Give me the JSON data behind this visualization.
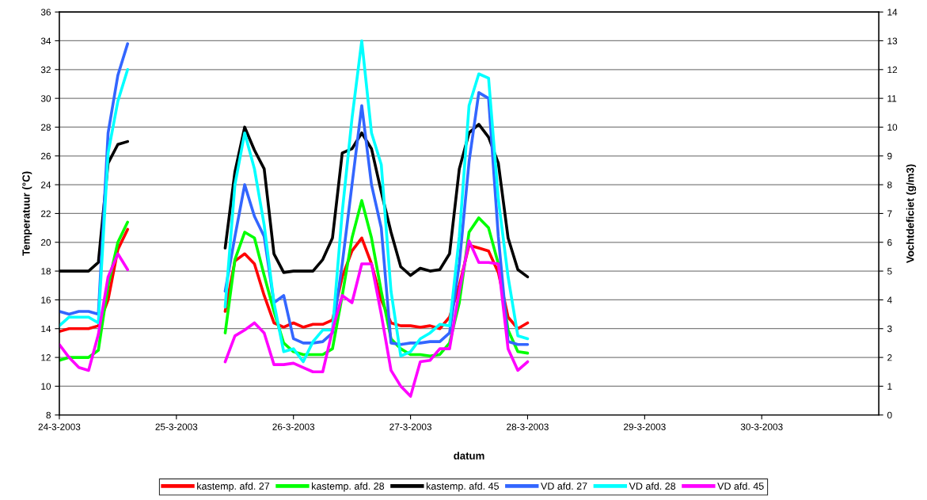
{
  "chart_data": {
    "type": "line",
    "xlabel": "datum",
    "ylabel": "Temperatuur (°C)",
    "y2label": "Vochtdeficiet (g/m3)",
    "x": [
      "2003-03-24T00:00",
      "2003-03-24T02:00",
      "2003-03-24T04:00",
      "2003-03-24T06:00",
      "2003-03-24T08:00",
      "2003-03-24T10:00",
      "2003-03-24T12:00",
      "2003-03-24T14:00",
      "2003-03-25T00:00",
      "2003-03-25T10:00",
      "2003-03-25T12:00",
      "2003-03-25T14:00",
      "2003-03-25T16:00",
      "2003-03-25T18:00",
      "2003-03-25T20:00",
      "2003-03-25T22:00",
      "2003-03-26T00:00",
      "2003-03-26T02:00",
      "2003-03-26T04:00",
      "2003-03-26T06:00",
      "2003-03-26T08:00",
      "2003-03-26T10:00",
      "2003-03-26T12:00",
      "2003-03-26T14:00",
      "2003-03-26T16:00",
      "2003-03-26T18:00",
      "2003-03-26T20:00",
      "2003-03-26T22:00",
      "2003-03-27T00:00",
      "2003-03-27T02:00",
      "2003-03-27T04:00",
      "2003-03-27T06:00",
      "2003-03-27T08:00",
      "2003-03-27T10:00",
      "2003-03-27T12:00",
      "2003-03-27T14:00",
      "2003-03-27T16:00",
      "2003-03-27T18:00",
      "2003-03-27T20:00",
      "2003-03-27T22:00",
      "2003-03-28T00:00"
    ],
    "series": [
      {
        "name": "kastemp. afd. 27",
        "color": "#ff0000",
        "values": [
          13.8,
          14,
          14,
          14,
          14.2,
          16,
          19.5,
          20.9,
          null,
          15.2,
          18.7,
          19.2,
          18.5,
          16.3,
          14.4,
          14.1,
          14.4,
          14.1,
          14.3,
          14.3,
          14.6,
          17.6,
          19.4,
          20.3,
          18.5,
          16,
          14.4,
          14.2,
          14.2,
          14.1,
          14.2,
          14.0,
          14.8,
          17.0,
          19.8,
          19.6,
          19.4,
          17.9,
          14.8,
          14.0,
          14.4
        ]
      },
      {
        "name": "kastemp. afd. 28",
        "color": "#00ff00",
        "values": [
          11.8,
          12,
          12,
          12,
          12.5,
          17,
          20,
          21.4,
          null,
          13.7,
          18.8,
          20.7,
          20.3,
          17.7,
          15.2,
          13.0,
          12.4,
          12.2,
          12.2,
          12.2,
          12.6,
          16.3,
          20.3,
          22.9,
          20.3,
          16.6,
          13.3,
          12.6,
          12.2,
          12.2,
          12.1,
          12.2,
          13.0,
          15.8,
          20.7,
          21.7,
          21.0,
          18.5,
          13.9,
          12.4,
          12.3
        ]
      },
      {
        "name": "kastemp. afd. 45",
        "color": "#000000",
        "values": [
          18,
          18,
          18,
          18,
          18.6,
          25.5,
          26.8,
          27.0,
          null,
          19.6,
          24.9,
          28.0,
          26.4,
          25.1,
          19.2,
          17.9,
          18.0,
          18.0,
          18.0,
          18.8,
          20.3,
          26.2,
          26.5,
          27.6,
          26.5,
          23.5,
          20.7,
          18.3,
          17.7,
          18.2,
          18.0,
          18.1,
          19.2,
          25.1,
          27.6,
          28.2,
          27.3,
          25.5,
          20.3,
          18.1,
          17.6
        ]
      },
      {
        "name": "VD afd. 27",
        "color": "#3366ff",
        "axis": "y2",
        "values": [
          3.6,
          3.5,
          3.6,
          3.6,
          3.5,
          9.8,
          11.8,
          12.9,
          null,
          4.3,
          6.2,
          8.0,
          6.9,
          6.2,
          3.9,
          4.15,
          2.65,
          2.5,
          2.5,
          2.55,
          2.85,
          5.25,
          8.0,
          10.75,
          8.0,
          6.5,
          2.5,
          2.45,
          2.5,
          2.5,
          2.55,
          2.55,
          2.85,
          5.25,
          8.8,
          11.2,
          11.0,
          6.2,
          2.55,
          2.45,
          2.45
        ]
      },
      {
        "name": "VD afd. 28",
        "color": "#00ffff",
        "axis": "y2",
        "values": [
          3.1,
          3.4,
          3.4,
          3.4,
          3.2,
          9.1,
          10.9,
          12.0,
          null,
          3.75,
          8.0,
          9.8,
          8.55,
          6.6,
          3.9,
          2.2,
          2.3,
          1.85,
          2.55,
          2.95,
          2.95,
          7.05,
          10.3,
          13.0,
          9.8,
          8.7,
          4.3,
          2.05,
          2.2,
          2.65,
          2.85,
          3.15,
          3.1,
          6.2,
          10.75,
          11.85,
          11.7,
          7.5,
          4.8,
          2.75,
          2.65
        ]
      },
      {
        "name": "VD afd. 45",
        "color": "#ff00ff",
        "axis": "y2",
        "values": [
          2.45,
          2.0,
          1.65,
          1.55,
          2.8,
          4.8,
          5.6,
          5.05,
          null,
          1.85,
          2.75,
          2.95,
          3.2,
          2.85,
          1.75,
          1.75,
          1.8,
          1.65,
          1.5,
          1.5,
          2.95,
          4.15,
          3.9,
          5.25,
          5.25,
          3.5,
          1.55,
          1.0,
          0.65,
          1.85,
          1.9,
          2.3,
          2.3,
          4.3,
          6.05,
          5.3,
          5.3,
          5.25,
          2.3,
          1.55,
          1.85
        ]
      }
    ],
    "xlim": [
      "2003-03-24",
      "2003-03-31"
    ],
    "xticks": [
      {
        "value": "2003-03-24",
        "label": "24-3-2003"
      },
      {
        "value": "2003-03-25",
        "label": "25-3-2003"
      },
      {
        "value": "2003-03-26",
        "label": "26-3-2003"
      },
      {
        "value": "2003-03-27",
        "label": "27-3-2003"
      },
      {
        "value": "2003-03-28",
        "label": "28-3-2003"
      },
      {
        "value": "2003-03-29",
        "label": "29-3-2003"
      },
      {
        "value": "2003-03-30",
        "label": "30-3-2003"
      }
    ],
    "ylim": [
      8,
      36
    ],
    "yticks": [
      8,
      10,
      12,
      14,
      16,
      18,
      20,
      22,
      24,
      26,
      28,
      30,
      32,
      34,
      36
    ],
    "y2lim": [
      0,
      14
    ],
    "y2ticks": [
      0,
      1,
      2,
      3,
      4,
      5,
      6,
      7,
      8,
      9,
      10,
      11,
      12,
      13,
      14
    ],
    "grid": "y",
    "legend": "bottom",
    "marker": "none",
    "line_style": "solid"
  }
}
